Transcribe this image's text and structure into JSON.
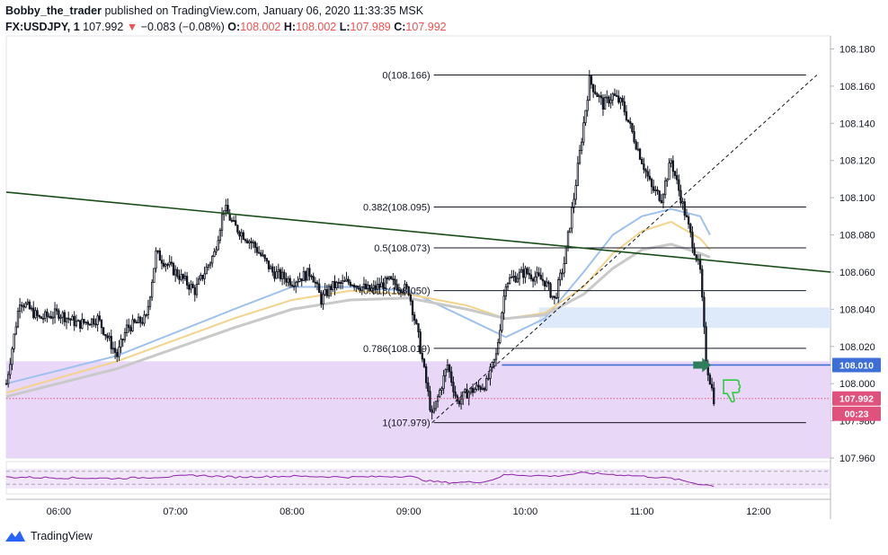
{
  "header": {
    "author": "Bobby_the_trader",
    "published": "published on TradingView.com, January 06, 2020 11:33:35 MSK",
    "symbol": "FX:USDJPY, 1",
    "last": "107.992",
    "change": "−0.083 (−0.08%)",
    "o_label": "O:",
    "o": "108.002",
    "h_label": "H:",
    "h": "108.002",
    "l_label": "L:",
    "l": "107.989",
    "c_label": "C:",
    "c": "107.992"
  },
  "footer": {
    "brand": "TradingView"
  },
  "colors": {
    "up": "#ffffff",
    "down": "#131722",
    "candle_border": "#131722",
    "zone_purple": "#e8d5f7",
    "zone_blue": "#dce8fa",
    "trendline": "#1b4d1b",
    "level_blue": "#3d6fd6",
    "ma_blue": "#9fc1ee",
    "ma_yellow": "#f2d48c",
    "ma_gray": "#c9c9c9",
    "rsi": "#8e24aa",
    "price_tag_red": "#e0527e",
    "price_tag_blue": "#3d6fd6"
  },
  "chart_data": {
    "type": "candlestick",
    "symbol": "USDJPY",
    "timeframe": "1",
    "y_ticks": [
      "108.180",
      "108.160",
      "108.140",
      "108.120",
      "108.100",
      "108.080",
      "108.060",
      "108.040",
      "108.020",
      "108.000",
      "107.980",
      "107.960"
    ],
    "ylim": [
      107.96,
      108.187
    ],
    "x_ticks": [
      "06:00",
      "07:00",
      "08:00",
      "09:00",
      "10:00",
      "11:00",
      "12:00"
    ],
    "xlim": [
      "05:33",
      "12:37"
    ],
    "close_path": [
      [
        "05:33",
        108.0
      ],
      [
        "05:40",
        108.045
      ],
      [
        "05:50",
        108.035
      ],
      [
        "06:00",
        108.038
      ],
      [
        "06:10",
        108.032
      ],
      [
        "06:20",
        108.035
      ],
      [
        "06:30",
        108.015
      ],
      [
        "06:35",
        108.03
      ],
      [
        "06:45",
        108.035
      ],
      [
        "06:50",
        108.07
      ],
      [
        "07:00",
        108.06
      ],
      [
        "07:10",
        108.05
      ],
      [
        "07:20",
        108.07
      ],
      [
        "07:25",
        108.095
      ],
      [
        "07:30",
        108.085
      ],
      [
        "07:40",
        108.075
      ],
      [
        "07:50",
        108.06
      ],
      [
        "08:00",
        108.055
      ],
      [
        "08:10",
        108.06
      ],
      [
        "08:15",
        108.045
      ],
      [
        "08:20",
        108.052
      ],
      [
        "08:30",
        108.055
      ],
      [
        "08:40",
        108.05
      ],
      [
        "08:50",
        108.055
      ],
      [
        "09:00",
        108.05
      ],
      [
        "09:05",
        108.025
      ],
      [
        "09:12",
        107.982
      ],
      [
        "09:20",
        108.01
      ],
      [
        "09:25",
        107.99
      ],
      [
        "09:30",
        107.995
      ],
      [
        "09:40",
        108.0
      ],
      [
        "09:45",
        108.015
      ],
      [
        "09:50",
        108.055
      ],
      [
        "10:00",
        108.06
      ],
      [
        "10:10",
        108.055
      ],
      [
        "10:15",
        108.045
      ],
      [
        "10:20",
        108.065
      ],
      [
        "10:25",
        108.1
      ],
      [
        "10:30",
        108.14
      ],
      [
        "10:33",
        108.163
      ],
      [
        "10:40",
        108.15
      ],
      [
        "10:45",
        108.155
      ],
      [
        "10:50",
        108.15
      ],
      [
        "11:00",
        108.12
      ],
      [
        "11:05",
        108.105
      ],
      [
        "11:10",
        108.1
      ],
      [
        "11:15",
        108.12
      ],
      [
        "11:20",
        108.1
      ],
      [
        "11:25",
        108.08
      ],
      [
        "11:30",
        108.06
      ],
      [
        "11:33",
        108.012
      ],
      [
        "11:37",
        107.992
      ]
    ],
    "fib_levels": [
      {
        "label": "0(108.166)",
        "value": 108.166
      },
      {
        "label": "0.382(108.095)",
        "value": 108.095
      },
      {
        "label": "0.5(108.073)",
        "value": 108.073
      },
      {
        "label": "0.618(108.050)",
        "value": 108.05
      },
      {
        "label": "0.786(108.019)",
        "value": 108.019
      },
      {
        "label": "1(107.979)",
        "value": 107.979
      }
    ],
    "fib_start": "09:12",
    "fib_end": "12:30",
    "trendline": {
      "from": [
        "05:33",
        108.103
      ],
      "to": [
        "12:37",
        108.06
      ]
    },
    "diagonal_line": {
      "from": [
        "09:12",
        107.979
      ],
      "to": [
        "12:30",
        108.166
      ]
    },
    "horizontal_level": {
      "value": 108.01,
      "label": "108.010",
      "from": "09:48"
    },
    "current_price": {
      "value": 107.992,
      "label": "107.992",
      "countdown": "00:23"
    },
    "zones": [
      {
        "type": "demand",
        "from": "05:33",
        "to": "12:37",
        "top": 108.012,
        "bottom": 107.96
      },
      {
        "type": "resistance",
        "from": "10:07",
        "to": "12:37",
        "top": 108.041,
        "bottom": 108.03
      }
    ],
    "moving_averages": [
      {
        "color": "blue",
        "points": [
          [
            "05:33",
            108.0
          ],
          [
            "06:30",
            108.015
          ],
          [
            "07:30",
            108.04
          ],
          [
            "08:00",
            108.052
          ],
          [
            "08:30",
            108.052
          ],
          [
            "09:00",
            108.05
          ],
          [
            "09:30",
            108.035
          ],
          [
            "09:50",
            108.025
          ],
          [
            "10:10",
            108.035
          ],
          [
            "10:30",
            108.06
          ],
          [
            "10:45",
            108.08
          ],
          [
            "11:00",
            108.09
          ],
          [
            "11:15",
            108.094
          ],
          [
            "11:30",
            108.09
          ],
          [
            "11:35",
            108.08
          ]
        ]
      },
      {
        "color": "yellow",
        "points": [
          [
            "05:33",
            107.995
          ],
          [
            "06:30",
            108.012
          ],
          [
            "07:30",
            108.035
          ],
          [
            "08:00",
            108.045
          ],
          [
            "08:30",
            108.05
          ],
          [
            "09:00",
            108.048
          ],
          [
            "09:30",
            108.042
          ],
          [
            "09:50",
            108.035
          ],
          [
            "10:10",
            108.038
          ],
          [
            "10:30",
            108.052
          ],
          [
            "10:45",
            108.07
          ],
          [
            "11:00",
            108.082
          ],
          [
            "11:15",
            108.087
          ],
          [
            "11:30",
            108.078
          ],
          [
            "11:35",
            108.072
          ]
        ]
      },
      {
        "color": "gray",
        "points": [
          [
            "05:33",
            107.993
          ],
          [
            "06:30",
            108.008
          ],
          [
            "07:30",
            108.03
          ],
          [
            "08:00",
            108.04
          ],
          [
            "08:30",
            108.045
          ],
          [
            "09:00",
            108.046
          ],
          [
            "09:30",
            108.04
          ],
          [
            "09:50",
            108.035
          ],
          [
            "10:10",
            108.037
          ],
          [
            "10:30",
            108.048
          ],
          [
            "10:45",
            108.062
          ],
          [
            "11:00",
            108.072
          ],
          [
            "11:15",
            108.075
          ],
          [
            "11:30",
            108.07
          ],
          [
            "11:35",
            108.068
          ]
        ]
      }
    ],
    "rsi": {
      "points": [
        [
          "05:33",
          52
        ],
        [
          "06:00",
          50
        ],
        [
          "06:30",
          48
        ],
        [
          "07:00",
          54
        ],
        [
          "07:10",
          58
        ],
        [
          "07:30",
          52
        ],
        [
          "08:00",
          55
        ],
        [
          "08:30",
          52
        ],
        [
          "09:00",
          55
        ],
        [
          "09:10",
          40
        ],
        [
          "09:20",
          35
        ],
        [
          "09:40",
          38
        ],
        [
          "09:50",
          60
        ],
        [
          "10:00",
          58
        ],
        [
          "10:15",
          55
        ],
        [
          "10:30",
          65
        ],
        [
          "10:40",
          62
        ],
        [
          "11:00",
          55
        ],
        [
          "11:15",
          48
        ],
        [
          "11:30",
          30
        ],
        [
          "11:37",
          25
        ]
      ],
      "upper": 70,
      "lower": 30
    }
  }
}
